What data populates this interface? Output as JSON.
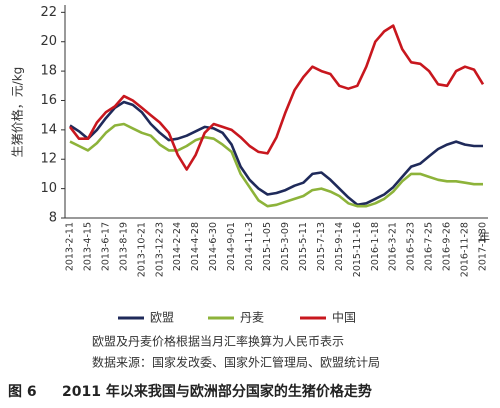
{
  "chart_data": {
    "type": "line",
    "ylabel": "生猪价格，元/kg",
    "xlabel": "年",
    "categories": [
      "2013-2-11",
      null,
      "2013-4-15",
      null,
      "2013-6-17",
      null,
      "2013-8-19",
      null,
      "2013-10-21",
      null,
      "2013-12-23",
      null,
      "2014-2-24",
      null,
      "2014-4-28",
      null,
      "2014-6-30",
      null,
      "2014-9-01",
      null,
      "2014-11-3",
      null,
      "2015-1-05",
      null,
      "2015-3-09",
      null,
      "2015-5-11",
      null,
      "2015-7-13",
      null,
      "2015-9-14",
      null,
      "2015-11-16",
      null,
      "2016-1-18",
      null,
      "2016-3-21",
      null,
      "2016-5-23",
      null,
      "2016-7-25",
      null,
      "2016-9-26",
      null,
      "2016-11-28",
      null,
      "2017-1-30"
    ],
    "series": [
      {
        "name": "欧盟",
        "color": "#1f2a5a",
        "values": [
          14.3,
          13.9,
          13.4,
          14.0,
          14.8,
          15.5,
          15.9,
          15.7,
          15.2,
          14.4,
          13.8,
          13.3,
          13.4,
          13.6,
          13.9,
          14.2,
          14.1,
          13.8,
          13.0,
          11.5,
          10.6,
          10.0,
          9.6,
          9.7,
          9.9,
          10.2,
          10.4,
          11.0,
          11.1,
          10.6,
          10.0,
          9.4,
          8.9,
          9.0,
          9.3,
          9.6,
          10.1,
          10.8,
          11.5,
          11.7,
          12.2,
          12.7,
          13.0,
          13.2,
          13.0,
          12.9,
          12.9
        ]
      },
      {
        "name": "丹麦",
        "color": "#8db33a",
        "values": [
          13.2,
          12.9,
          12.6,
          13.1,
          13.8,
          14.3,
          14.4,
          14.1,
          13.8,
          13.6,
          13.0,
          12.6,
          12.6,
          12.9,
          13.3,
          13.5,
          13.4,
          13.0,
          12.5,
          11.0,
          10.1,
          9.2,
          8.8,
          8.9,
          9.1,
          9.3,
          9.5,
          9.9,
          10.0,
          9.8,
          9.5,
          9.0,
          8.8,
          8.8,
          9.0,
          9.3,
          9.8,
          10.5,
          11.0,
          11.0,
          10.8,
          10.6,
          10.5,
          10.5,
          10.4,
          10.3,
          10.3
        ]
      },
      {
        "name": "中国",
        "color": "#c8171e",
        "values": [
          14.2,
          13.4,
          13.4,
          14.5,
          15.2,
          15.6,
          16.3,
          16.0,
          15.5,
          15.0,
          14.5,
          13.8,
          12.3,
          11.3,
          12.3,
          13.8,
          14.4,
          14.2,
          14.0,
          13.5,
          12.9,
          12.5,
          12.4,
          13.5,
          15.2,
          16.7,
          17.6,
          18.3,
          18.0,
          17.8,
          17.0,
          16.8,
          17.0,
          18.3,
          20.0,
          20.7,
          21.1,
          19.5,
          18.6,
          18.5,
          18.0,
          17.1,
          17.0,
          18.0,
          18.3,
          18.1,
          17.1
        ]
      }
    ],
    "ylim": [
      8,
      22.5
    ],
    "yticks": [
      8,
      10,
      12,
      14,
      16,
      18,
      20,
      22
    ],
    "notes": [
      "欧盟及丹麦价格根据当月汇率换算为人民币表示",
      "数据来源：国家发改委、国家外汇管理局、欧盟统计局"
    ],
    "caption": {
      "label": "图 6",
      "text": "2011 年以来我国与欧洲部分国家的生猪价格走势"
    }
  }
}
